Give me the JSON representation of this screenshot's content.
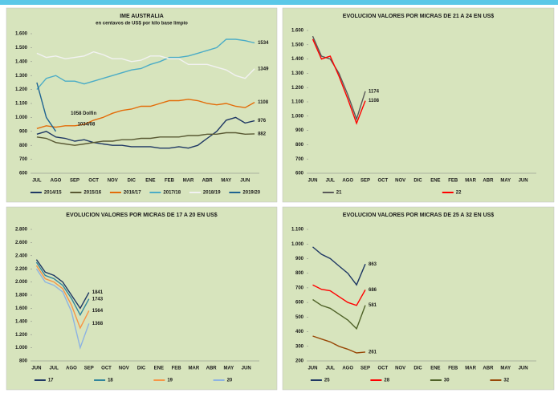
{
  "chart_data": [
    {
      "type": "line",
      "title": "IME AUSTRALIA",
      "subtitle": "en centavos de US$ por kilo base limpio",
      "categories": [
        "JUL",
        null,
        "AGO",
        null,
        "SEP",
        null,
        "OCT",
        null,
        "NOV",
        null,
        "DIC",
        null,
        "ENE",
        null,
        "FEB",
        null,
        "MAR",
        null,
        "ABR",
        null,
        "MAY",
        null,
        "JUN",
        null
      ],
      "ylim": [
        600,
        1600
      ],
      "yticks": [
        {
          "value": 600,
          "label": "600"
        },
        {
          "value": 700,
          "label": "700"
        },
        {
          "value": 800,
          "label": "800"
        },
        {
          "value": 900,
          "label": "900"
        },
        {
          "value": 1000,
          "label": "1.000"
        },
        {
          "value": 1100,
          "label": "1.100"
        },
        {
          "value": 1200,
          "label": "1.200"
        },
        {
          "value": 1300,
          "label": "1.300"
        },
        {
          "value": 1400,
          "label": "1.400"
        },
        {
          "value": 1500,
          "label": "1.500"
        },
        {
          "value": 1600,
          "label": "1.600"
        }
      ],
      "annotations": [
        "1058 Dolfin",
        "1034/08"
      ],
      "series": [
        {
          "name": "2014/15",
          "color": "#1f3864",
          "end_label": true,
          "values": [
            880,
            900,
            860,
            850,
            830,
            840,
            820,
            810,
            800,
            800,
            790,
            790,
            790,
            780,
            780,
            790,
            780,
            800,
            850,
            900,
            980,
            1000,
            960,
            976
          ]
        },
        {
          "name": "2015/16",
          "color": "#595933",
          "end_label": true,
          "values": [
            860,
            850,
            820,
            810,
            800,
            810,
            820,
            830,
            830,
            840,
            840,
            850,
            850,
            860,
            860,
            860,
            870,
            870,
            880,
            880,
            890,
            890,
            880,
            882
          ]
        },
        {
          "name": "2016/17",
          "color": "#e36c09",
          "end_label": true,
          "values": [
            920,
            940,
            930,
            940,
            940,
            950,
            980,
            1000,
            1030,
            1050,
            1060,
            1080,
            1080,
            1100,
            1120,
            1120,
            1130,
            1120,
            1100,
            1090,
            1100,
            1080,
            1070,
            1108
          ]
        },
        {
          "name": "2017/18",
          "color": "#4bacc6",
          "end_label": true,
          "values": [
            1200,
            1280,
            1300,
            1260,
            1260,
            1240,
            1260,
            1280,
            1300,
            1320,
            1340,
            1350,
            1380,
            1400,
            1430,
            1430,
            1440,
            1460,
            1480,
            1500,
            1560,
            1560,
            1550,
            1534
          ]
        },
        {
          "name": "2018/19",
          "color": "#f2f2f2",
          "end_label": true,
          "values": [
            1460,
            1430,
            1440,
            1420,
            1430,
            1440,
            1470,
            1450,
            1420,
            1420,
            1400,
            1410,
            1440,
            1440,
            1420,
            1420,
            1380,
            1380,
            1380,
            1360,
            1340,
            1300,
            1280,
            1349
          ]
        },
        {
          "name": "2019/20",
          "color": "#1f6391",
          "values": [
            1250,
            1000,
            900,
            null,
            null,
            null,
            null,
            null,
            null,
            null,
            null,
            null,
            null,
            null,
            null,
            null,
            null,
            null,
            null,
            null,
            null,
            null,
            null,
            null
          ]
        }
      ]
    },
    {
      "type": "line",
      "title": "EVOLUCION VALORES POR MICRAS DE 21 A 24 EN US$",
      "categories": [
        "JUN",
        null,
        "JUL",
        null,
        "AGO",
        null,
        "SEP",
        null,
        "OCT",
        null,
        "NOV",
        null,
        "DIC",
        null,
        "ENE",
        null,
        "FEB",
        null,
        "MAR",
        null,
        "ABR",
        null,
        "MAY",
        null,
        "JUN",
        null
      ],
      "ylim": [
        600,
        1600
      ],
      "yticks": [
        {
          "value": 600,
          "label": "600"
        },
        {
          "value": 700,
          "label": "700"
        },
        {
          "value": 800,
          "label": "800"
        },
        {
          "value": 900,
          "label": "900"
        },
        {
          "value": 1000,
          "label": "1.000"
        },
        {
          "value": 1100,
          "label": "1.100"
        },
        {
          "value": 1200,
          "label": "1.200"
        },
        {
          "value": 1300,
          "label": "1.300"
        },
        {
          "value": 1400,
          "label": "1.400"
        },
        {
          "value": 1500,
          "label": "1.500"
        },
        {
          "value": 1600,
          "label": "1.600"
        }
      ],
      "series": [
        {
          "name": "21",
          "color": "#595959",
          "end_label": true,
          "values": [
            1560,
            1420,
            1400,
            1300,
            1150,
            980,
            1174,
            null,
            null,
            null,
            null,
            null,
            null,
            null,
            null,
            null,
            null,
            null,
            null,
            null,
            null,
            null,
            null,
            null,
            null,
            null
          ]
        },
        {
          "name": "22",
          "color": "#ff0000",
          "end_label": true,
          "values": [
            1540,
            1400,
            1420,
            1280,
            1120,
            950,
            1108,
            null,
            null,
            null,
            null,
            null,
            null,
            null,
            null,
            null,
            null,
            null,
            null,
            null,
            null,
            null,
            null,
            null,
            null,
            null
          ]
        }
      ]
    },
    {
      "type": "line",
      "title": "EVOLUCION VALORES POR MICRAS DE 17 A 20 EN US$",
      "categories": [
        "JUN",
        null,
        "JUL",
        null,
        "AGO",
        null,
        "SEP",
        null,
        "OCT",
        null,
        "NOV",
        null,
        "DIC",
        null,
        "ENE",
        null,
        "FEB",
        null,
        "MAR",
        null,
        "ABR",
        null,
        "MAY",
        null,
        "JUN",
        null
      ],
      "ylim": [
        800,
        2800
      ],
      "yticks": [
        {
          "value": 800,
          "label": "800"
        },
        {
          "value": 1000,
          "label": "1.000"
        },
        {
          "value": 1200,
          "label": "1.200"
        },
        {
          "value": 1400,
          "label": "1.400"
        },
        {
          "value": 1600,
          "label": "1.600"
        },
        {
          "value": 1800,
          "label": "1.800"
        },
        {
          "value": 2000,
          "label": "2.000"
        },
        {
          "value": 2200,
          "label": "2.200"
        },
        {
          "value": 2400,
          "label": "2.400"
        },
        {
          "value": 2600,
          "label": "2.600"
        },
        {
          "value": 2800,
          "label": "2.800"
        }
      ],
      "series": [
        {
          "name": "17",
          "color": "#1f3864",
          "end_label": true,
          "values": [
            2340,
            2150,
            2100,
            2000,
            1800,
            1600,
            1841,
            null,
            null,
            null,
            null,
            null,
            null,
            null,
            null,
            null,
            null,
            null,
            null,
            null,
            null,
            null,
            null,
            null,
            null,
            null
          ]
        },
        {
          "name": "18",
          "color": "#31859c",
          "end_label": true,
          "values": [
            2300,
            2100,
            2050,
            1950,
            1750,
            1500,
            1743,
            null,
            null,
            null,
            null,
            null,
            null,
            null,
            null,
            null,
            null,
            null,
            null,
            null,
            null,
            null,
            null,
            null,
            null,
            null
          ]
        },
        {
          "name": "19",
          "color": "#f79646",
          "end_label": true,
          "values": [
            2250,
            2050,
            2000,
            1900,
            1650,
            1300,
            1564,
            null,
            null,
            null,
            null,
            null,
            null,
            null,
            null,
            null,
            null,
            null,
            null,
            null,
            null,
            null,
            null,
            null,
            null,
            null
          ]
        },
        {
          "name": "20",
          "color": "#8db3e2",
          "end_label": true,
          "values": [
            2200,
            2000,
            1950,
            1850,
            1550,
            1000,
            1368,
            null,
            null,
            null,
            null,
            null,
            null,
            null,
            null,
            null,
            null,
            null,
            null,
            null,
            null,
            null,
            null,
            null,
            null,
            null
          ]
        }
      ]
    },
    {
      "type": "line",
      "title": "EVOLUCION VALORES POR MICRAS DE 25 A 32 EN US$",
      "categories": [
        "JUN",
        null,
        "JUL",
        null,
        "AGO",
        null,
        "SEP",
        null,
        "OCT",
        null,
        "NOV",
        null,
        "DIC",
        null,
        "ENE",
        null,
        "FEB",
        null,
        "MAR",
        null,
        "ABR",
        null,
        "MAY",
        null,
        "JUN",
        null
      ],
      "ylim": [
        200,
        1100
      ],
      "yticks": [
        {
          "value": 200,
          "label": "200"
        },
        {
          "value": 300,
          "label": "300"
        },
        {
          "value": 400,
          "label": "400"
        },
        {
          "value": 500,
          "label": "500"
        },
        {
          "value": 600,
          "label": "600"
        },
        {
          "value": 700,
          "label": "700"
        },
        {
          "value": 800,
          "label": "800"
        },
        {
          "value": 900,
          "label": "900"
        },
        {
          "value": 1000,
          "label": "1.000"
        },
        {
          "value": 1100,
          "label": "1.100"
        }
      ],
      "series": [
        {
          "name": "25",
          "color": "#1f3864",
          "end_label": true,
          "values": [
            980,
            930,
            900,
            850,
            800,
            720,
            863,
            null,
            null,
            null,
            null,
            null,
            null,
            null,
            null,
            null,
            null,
            null,
            null,
            null,
            null,
            null,
            null,
            null,
            null,
            null
          ]
        },
        {
          "name": "28",
          "color": "#ff0000",
          "end_label": true,
          "values": [
            720,
            690,
            680,
            640,
            600,
            580,
            686,
            null,
            null,
            null,
            null,
            null,
            null,
            null,
            null,
            null,
            null,
            null,
            null,
            null,
            null,
            null,
            null,
            null,
            null,
            null
          ]
        },
        {
          "name": "30",
          "color": "#4f6228",
          "end_label": true,
          "values": [
            620,
            580,
            560,
            520,
            480,
            420,
            581,
            null,
            null,
            null,
            null,
            null,
            null,
            null,
            null,
            null,
            null,
            null,
            null,
            null,
            null,
            null,
            null,
            null,
            null,
            null
          ]
        },
        {
          "name": "32",
          "color": "#984807",
          "end_label": true,
          "values": [
            370,
            350,
            330,
            300,
            280,
            255,
            261,
            null,
            null,
            null,
            null,
            null,
            null,
            null,
            null,
            null,
            null,
            null,
            null,
            null,
            null,
            null,
            null,
            null,
            null,
            null
          ]
        }
      ]
    }
  ]
}
